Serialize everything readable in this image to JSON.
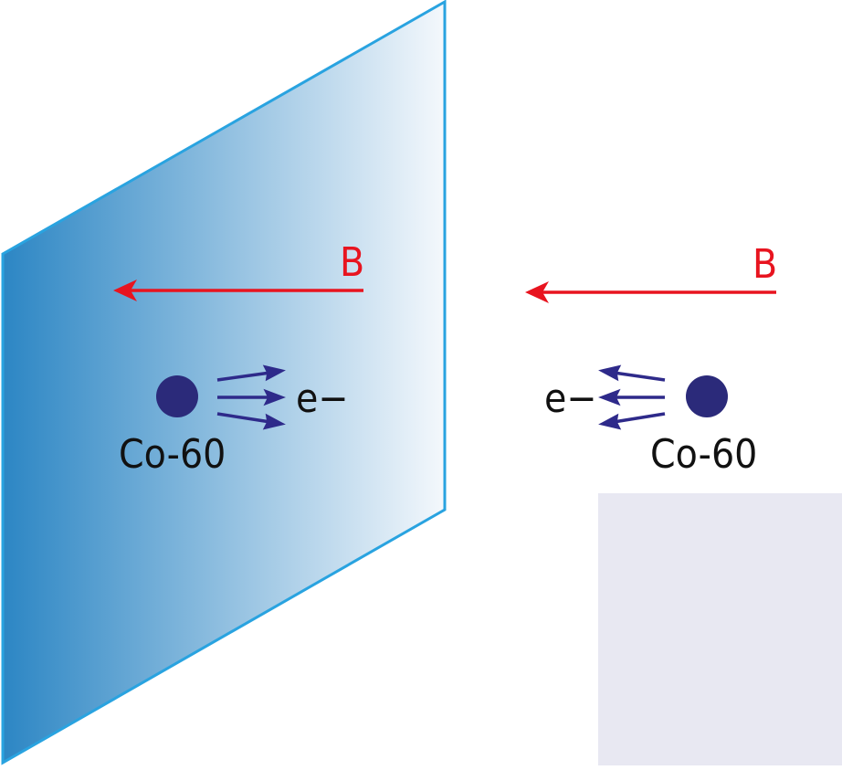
{
  "diagram": {
    "left_scene": {
      "field_label": "B",
      "electron_label": "e−",
      "source_label": "Co-60"
    },
    "right_scene": {
      "field_label": "B",
      "electron_label": "e−",
      "source_label": "Co-60"
    }
  },
  "colors": {
    "mirror_edge": "#29a3e0",
    "mirror_dark": "#2c86c4",
    "mirror_light": "#f4f8fc",
    "field_arrow": "#e8141f",
    "electron_arrow": "#2e2a8a",
    "nucleus": "#2b2a7a",
    "text": "#111111",
    "panel": "#e8e8f2"
  }
}
